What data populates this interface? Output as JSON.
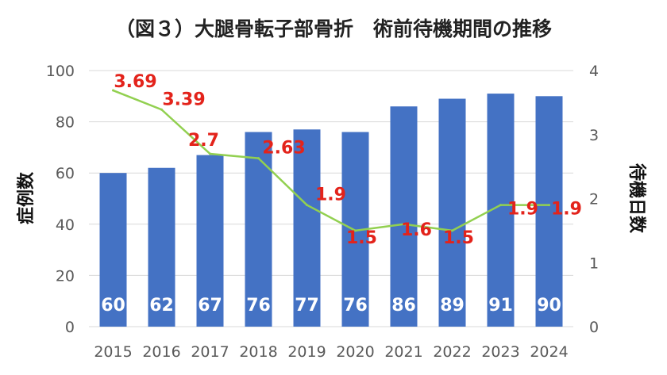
{
  "chart_data": {
    "type": "bar+line",
    "title": "（図３）大腿骨転子部骨折　術前待機期間の推移",
    "categories": [
      "2015",
      "2016",
      "2017",
      "2018",
      "2019",
      "2020",
      "2021",
      "2022",
      "2023",
      "2024"
    ],
    "series": [
      {
        "name": "症例数",
        "type": "bar",
        "axis": "left",
        "values": [
          60,
          62,
          67,
          76,
          77,
          76,
          86,
          89,
          91,
          90
        ]
      },
      {
        "name": "待機日数",
        "type": "line",
        "axis": "right",
        "values": [
          3.69,
          3.39,
          2.7,
          2.63,
          1.9,
          1.5,
          1.6,
          1.5,
          1.9,
          1.9
        ]
      }
    ],
    "ylabel": "症例数",
    "y2label": "待機日数",
    "ylim": [
      0,
      100
    ],
    "y2lim": [
      0,
      4
    ],
    "yticks": [
      0,
      20,
      40,
      60,
      80,
      100
    ],
    "y2ticks": [
      0,
      1,
      2,
      3,
      4
    ],
    "grid": true,
    "legend": "none",
    "colors": {
      "bar": "#4472c4",
      "line": "#92d050",
      "line_label": "#e3231b",
      "bar_label": "#ffffff",
      "grid": "#d9d9d9",
      "tick": "#595959"
    }
  }
}
